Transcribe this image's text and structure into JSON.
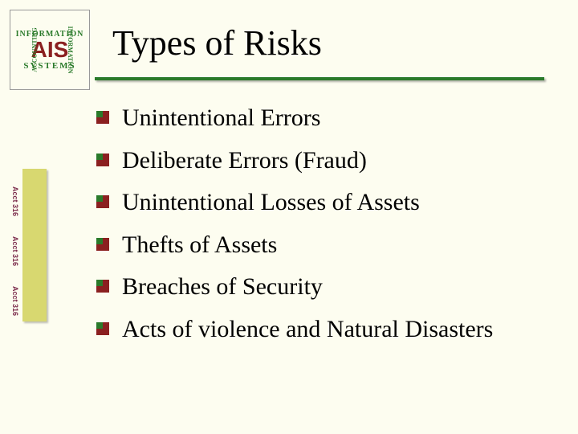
{
  "title": "Types of Risks",
  "logo": {
    "top": "INFORMATION",
    "mid": "AIS",
    "bottom": "SYSTEMS",
    "left": "ACCOUNTING",
    "right": "INFORMATION"
  },
  "sidebar": {
    "labels": [
      "Acct 316",
      "Acct 316",
      "Acct 316"
    ]
  },
  "items": [
    "Unintentional Errors",
    "Deliberate Errors (Fraud)",
    "Unintentional Losses of Assets",
    "Thefts of Assets",
    "Breaches of Security",
    "Acts of violence and Natural Disasters"
  ],
  "colors": {
    "background": "#fdfdf0",
    "underline": "#2a7a2a",
    "sidebar": "#d8d870",
    "sidebar_text": "#7a2a4a",
    "bullet_main": "#8b2020",
    "bullet_accent": "#2a7a2a",
    "text": "#000000"
  },
  "fonts": {
    "title_size_pt": 44,
    "item_size_pt": 30,
    "family": "Georgia, serif"
  }
}
